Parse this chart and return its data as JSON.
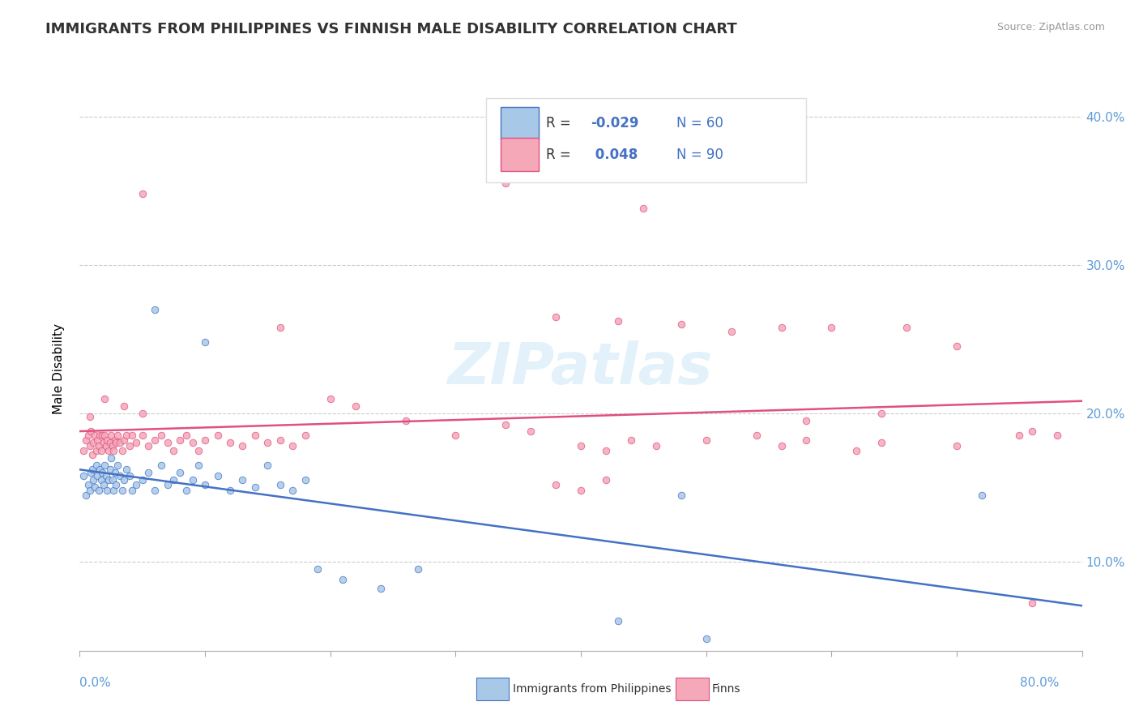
{
  "title": "IMMIGRANTS FROM PHILIPPINES VS FINNISH MALE DISABILITY CORRELATION CHART",
  "source": "Source: ZipAtlas.com",
  "ylabel": "Male Disability",
  "xlim": [
    0.0,
    0.8
  ],
  "ylim": [
    0.04,
    0.42
  ],
  "yticks": [
    0.1,
    0.2,
    0.3,
    0.4
  ],
  "ytick_labels": [
    "10.0%",
    "20.0%",
    "30.0%",
    "40.0%"
  ],
  "color_blue": "#a8c8e8",
  "color_pink": "#f4a8b8",
  "line_blue": "#4472c4",
  "line_pink": "#e05080",
  "watermark_color": "#d0e8f8",
  "blue_scatter": [
    [
      0.003,
      0.158
    ],
    [
      0.005,
      0.145
    ],
    [
      0.007,
      0.152
    ],
    [
      0.008,
      0.148
    ],
    [
      0.009,
      0.16
    ],
    [
      0.01,
      0.162
    ],
    [
      0.011,
      0.155
    ],
    [
      0.012,
      0.15
    ],
    [
      0.013,
      0.165
    ],
    [
      0.014,
      0.158
    ],
    [
      0.015,
      0.148
    ],
    [
      0.016,
      0.162
    ],
    [
      0.017,
      0.155
    ],
    [
      0.018,
      0.16
    ],
    [
      0.019,
      0.152
    ],
    [
      0.02,
      0.165
    ],
    [
      0.021,
      0.158
    ],
    [
      0.022,
      0.148
    ],
    [
      0.023,
      0.155
    ],
    [
      0.024,
      0.162
    ],
    [
      0.025,
      0.17
    ],
    [
      0.026,
      0.155
    ],
    [
      0.027,
      0.148
    ],
    [
      0.028,
      0.16
    ],
    [
      0.029,
      0.152
    ],
    [
      0.03,
      0.165
    ],
    [
      0.032,
      0.158
    ],
    [
      0.034,
      0.148
    ],
    [
      0.035,
      0.155
    ],
    [
      0.037,
      0.162
    ],
    [
      0.04,
      0.158
    ],
    [
      0.042,
      0.148
    ],
    [
      0.045,
      0.152
    ],
    [
      0.05,
      0.155
    ],
    [
      0.055,
      0.16
    ],
    [
      0.06,
      0.148
    ],
    [
      0.065,
      0.165
    ],
    [
      0.07,
      0.152
    ],
    [
      0.075,
      0.155
    ],
    [
      0.08,
      0.16
    ],
    [
      0.085,
      0.148
    ],
    [
      0.09,
      0.155
    ],
    [
      0.095,
      0.165
    ],
    [
      0.1,
      0.152
    ],
    [
      0.11,
      0.158
    ],
    [
      0.12,
      0.148
    ],
    [
      0.13,
      0.155
    ],
    [
      0.14,
      0.15
    ],
    [
      0.15,
      0.165
    ],
    [
      0.16,
      0.152
    ],
    [
      0.17,
      0.148
    ],
    [
      0.18,
      0.155
    ],
    [
      0.06,
      0.27
    ],
    [
      0.1,
      0.248
    ],
    [
      0.19,
      0.095
    ],
    [
      0.21,
      0.088
    ],
    [
      0.24,
      0.082
    ],
    [
      0.27,
      0.095
    ],
    [
      0.48,
      0.145
    ],
    [
      0.72,
      0.145
    ],
    [
      0.43,
      0.06
    ],
    [
      0.5,
      0.048
    ]
  ],
  "pink_scatter": [
    [
      0.003,
      0.175
    ],
    [
      0.005,
      0.182
    ],
    [
      0.007,
      0.185
    ],
    [
      0.008,
      0.178
    ],
    [
      0.009,
      0.188
    ],
    [
      0.01,
      0.172
    ],
    [
      0.011,
      0.18
    ],
    [
      0.012,
      0.185
    ],
    [
      0.013,
      0.175
    ],
    [
      0.014,
      0.182
    ],
    [
      0.015,
      0.178
    ],
    [
      0.016,
      0.185
    ],
    [
      0.017,
      0.175
    ],
    [
      0.018,
      0.185
    ],
    [
      0.019,
      0.18
    ],
    [
      0.02,
      0.185
    ],
    [
      0.021,
      0.178
    ],
    [
      0.022,
      0.182
    ],
    [
      0.023,
      0.175
    ],
    [
      0.024,
      0.18
    ],
    [
      0.025,
      0.185
    ],
    [
      0.026,
      0.178
    ],
    [
      0.027,
      0.175
    ],
    [
      0.028,
      0.182
    ],
    [
      0.029,
      0.18
    ],
    [
      0.03,
      0.185
    ],
    [
      0.032,
      0.18
    ],
    [
      0.034,
      0.175
    ],
    [
      0.035,
      0.182
    ],
    [
      0.037,
      0.185
    ],
    [
      0.04,
      0.178
    ],
    [
      0.042,
      0.185
    ],
    [
      0.045,
      0.18
    ],
    [
      0.05,
      0.185
    ],
    [
      0.055,
      0.178
    ],
    [
      0.06,
      0.182
    ],
    [
      0.065,
      0.185
    ],
    [
      0.07,
      0.18
    ],
    [
      0.075,
      0.175
    ],
    [
      0.08,
      0.182
    ],
    [
      0.085,
      0.185
    ],
    [
      0.09,
      0.18
    ],
    [
      0.095,
      0.175
    ],
    [
      0.1,
      0.182
    ],
    [
      0.11,
      0.185
    ],
    [
      0.12,
      0.18
    ],
    [
      0.13,
      0.178
    ],
    [
      0.14,
      0.185
    ],
    [
      0.15,
      0.18
    ],
    [
      0.16,
      0.182
    ],
    [
      0.17,
      0.178
    ],
    [
      0.18,
      0.185
    ],
    [
      0.02,
      0.21
    ],
    [
      0.035,
      0.205
    ],
    [
      0.05,
      0.2
    ],
    [
      0.008,
      0.198
    ],
    [
      0.34,
      0.355
    ],
    [
      0.45,
      0.338
    ],
    [
      0.48,
      0.26
    ],
    [
      0.52,
      0.255
    ],
    [
      0.56,
      0.258
    ],
    [
      0.6,
      0.258
    ],
    [
      0.43,
      0.262
    ],
    [
      0.38,
      0.265
    ],
    [
      0.2,
      0.21
    ],
    [
      0.22,
      0.205
    ],
    [
      0.26,
      0.195
    ],
    [
      0.3,
      0.185
    ],
    [
      0.34,
      0.192
    ],
    [
      0.36,
      0.188
    ],
    [
      0.4,
      0.178
    ],
    [
      0.42,
      0.175
    ],
    [
      0.44,
      0.182
    ],
    [
      0.46,
      0.178
    ],
    [
      0.5,
      0.182
    ],
    [
      0.54,
      0.185
    ],
    [
      0.56,
      0.178
    ],
    [
      0.58,
      0.182
    ],
    [
      0.62,
      0.175
    ],
    [
      0.64,
      0.18
    ],
    [
      0.66,
      0.258
    ],
    [
      0.7,
      0.245
    ],
    [
      0.58,
      0.195
    ],
    [
      0.64,
      0.2
    ],
    [
      0.7,
      0.178
    ],
    [
      0.75,
      0.185
    ],
    [
      0.76,
      0.188
    ],
    [
      0.78,
      0.185
    ],
    [
      0.76,
      0.072
    ],
    [
      0.38,
      0.152
    ],
    [
      0.4,
      0.148
    ],
    [
      0.42,
      0.155
    ],
    [
      0.16,
      0.258
    ],
    [
      0.05,
      0.348
    ]
  ]
}
